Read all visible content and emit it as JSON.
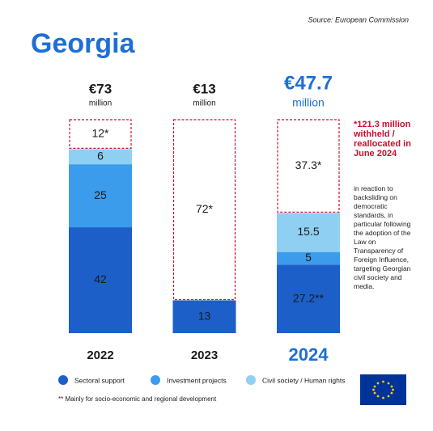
{
  "chart_data": {
    "type": "stacked-bar",
    "title": "Georgia",
    "source": "Source: European Commission",
    "categories": [
      "2022",
      "2023",
      "2024"
    ],
    "totals": [
      73,
      13,
      47.7
    ],
    "total_labels": [
      "€73",
      "€13",
      "€47.7"
    ],
    "total_unit": "million",
    "series": [
      {
        "name": "Sectoral support",
        "color": "#1d5fc9",
        "values": [
          42,
          13,
          27.2
        ],
        "value_labels": [
          "42",
          "13",
          "27.2**"
        ]
      },
      {
        "name": "Investment projects",
        "color": "#3b9cec",
        "values": [
          25,
          null,
          5
        ]
      },
      {
        "name": "Civil society / Human rights",
        "color": "#8fd0f2",
        "values": [
          6,
          null,
          15.5
        ]
      }
    ],
    "withheld": {
      "color": "#c8102e",
      "values": [
        12,
        72,
        37.3
      ],
      "value_labels": [
        "12*",
        "72*",
        "37.3*"
      ]
    },
    "note_title": "*121.3 million withheld / reallocated in June 2024",
    "note_text": "in reaction to backsliding on democratic standards, in particular following the adoption of the Law on Transparency of Foreign Influence, targeting Georgian civil society and media.",
    "footnote": "** Mainly for socio-economic and regional development"
  }
}
